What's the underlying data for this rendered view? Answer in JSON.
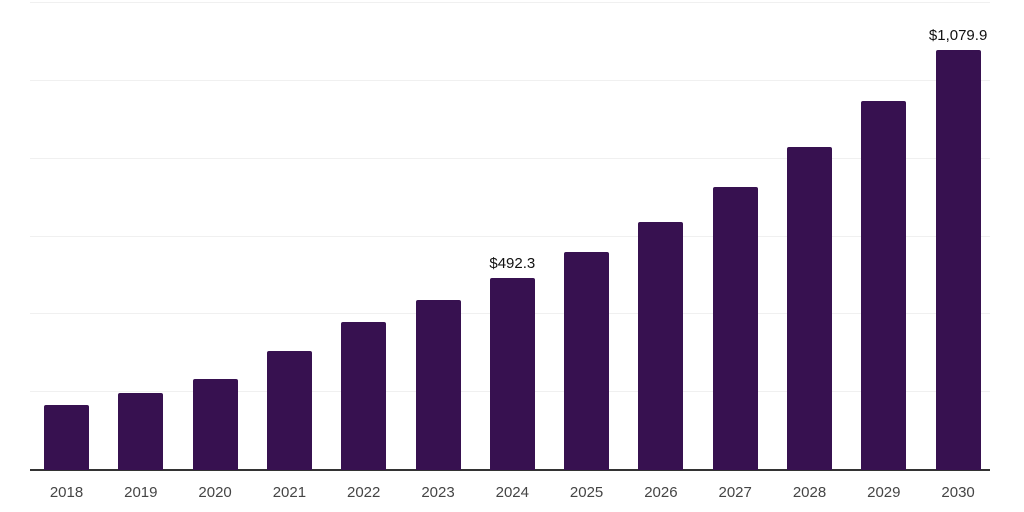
{
  "chart": {
    "background_color": "#ffffff",
    "bar_color": "#371150",
    "gridline_color": "#f0f0f0",
    "axis_line_color": "#333333",
    "tick_label_color": "#454545",
    "value_label_color": "#111111"
  },
  "chart_data": {
    "type": "bar",
    "title": "",
    "xlabel": "",
    "ylabel": "",
    "categories": [
      "2018",
      "2019",
      "2020",
      "2021",
      "2022",
      "2023",
      "2024",
      "2025",
      "2026",
      "2027",
      "2028",
      "2029",
      "2030"
    ],
    "values": [
      166,
      199,
      234,
      305,
      381,
      437,
      492.3,
      561,
      638,
      728,
      829,
      947,
      1079.9
    ],
    "annotations": [
      {
        "index": 6,
        "text": "$492.3"
      },
      {
        "index": 12,
        "text": "$1,079.9"
      }
    ],
    "ylim": [
      0,
      1200
    ],
    "gridline_interval": 200,
    "grid": "horizontal",
    "y_axis_tick_labels_visible": false,
    "legend": "none"
  }
}
